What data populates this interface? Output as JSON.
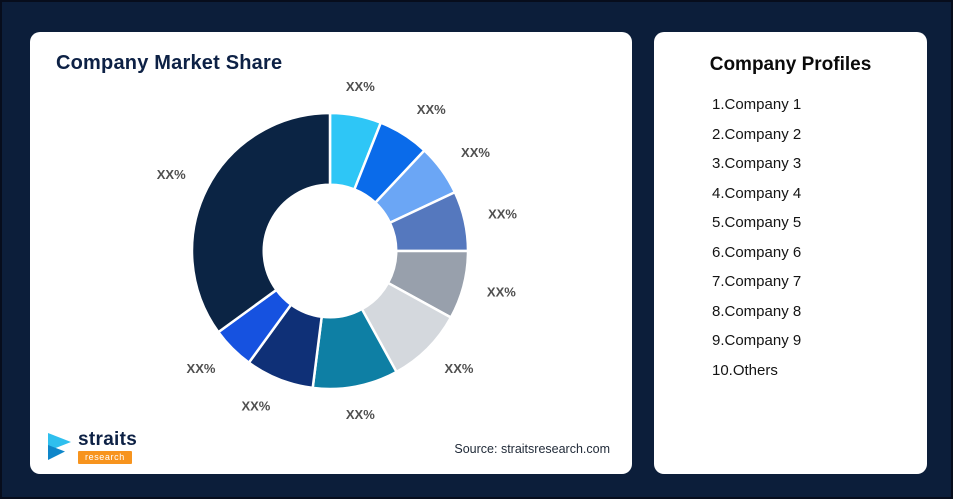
{
  "page": {
    "background": "#0C1E3A"
  },
  "market_card": {
    "title": "Company Market Share",
    "source": "Source: straitsresearch.com",
    "logo": {
      "brand": "straits",
      "sub": "research"
    }
  },
  "profiles_card": {
    "title": "Company Profiles",
    "items": [
      {
        "label": "1.Company 1"
      },
      {
        "label": "2.Company 2"
      },
      {
        "label": "3.Company 3"
      },
      {
        "label": "4.Company 4"
      },
      {
        "label": "5.Company 5"
      },
      {
        "label": "6.Company 6"
      },
      {
        "label": "7.Company 7"
      },
      {
        "label": "8.Company 8"
      },
      {
        "label": "9.Company 9"
      },
      {
        "label": "10.Others"
      }
    ]
  },
  "chart_data": {
    "type": "pie",
    "subtype": "donut",
    "title": "Company Market Share",
    "legend_position": "none",
    "direction": "clockwise",
    "start_angle_deg": 0,
    "inner_radius_ratio": 0.48,
    "categories": [
      "Company 1",
      "Company 2",
      "Company 3",
      "Company 4",
      "Company 5",
      "Company 6",
      "Company 7",
      "Company 8",
      "Company 9",
      "Others"
    ],
    "values": [
      6,
      6,
      6,
      7,
      8,
      9,
      10,
      8,
      5,
      35
    ],
    "values_estimated": true,
    "unit": "%",
    "slice_labels": [
      "XX%",
      "XX%",
      "XX%",
      "XX%",
      "XX%",
      "XX%",
      "XX%",
      "XX%",
      "XX%",
      "XX%"
    ],
    "colors": [
      "#2EC6F6",
      "#0A6BEA",
      "#6BA6F5",
      "#5578BE",
      "#98A0AC",
      "#D4D8DD",
      "#0E7FA4",
      "#0F3077",
      "#1652E0",
      "#0B2444"
    ],
    "label_color": "#4F4F4F"
  }
}
